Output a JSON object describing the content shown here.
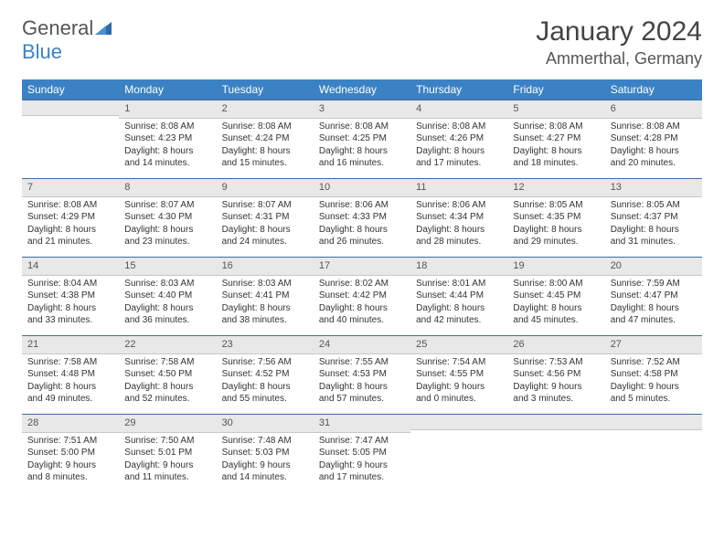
{
  "logo": {
    "text_main": "General",
    "text_accent": "Blue"
  },
  "title": "January 2024",
  "location": "Ammerthal, Germany",
  "colors": {
    "header_bg": "#3b82c4",
    "header_text": "#ffffff",
    "daynum_bg": "#e8e8e8",
    "row_border": "#3b6fa0",
    "body_text": "#333333"
  },
  "weekdays": [
    "Sunday",
    "Monday",
    "Tuesday",
    "Wednesday",
    "Thursday",
    "Friday",
    "Saturday"
  ],
  "weeks": [
    [
      {
        "num": "",
        "sunrise": "",
        "sunset": "",
        "daylight": ""
      },
      {
        "num": "1",
        "sunrise": "Sunrise: 8:08 AM",
        "sunset": "Sunset: 4:23 PM",
        "daylight": "Daylight: 8 hours and 14 minutes."
      },
      {
        "num": "2",
        "sunrise": "Sunrise: 8:08 AM",
        "sunset": "Sunset: 4:24 PM",
        "daylight": "Daylight: 8 hours and 15 minutes."
      },
      {
        "num": "3",
        "sunrise": "Sunrise: 8:08 AM",
        "sunset": "Sunset: 4:25 PM",
        "daylight": "Daylight: 8 hours and 16 minutes."
      },
      {
        "num": "4",
        "sunrise": "Sunrise: 8:08 AM",
        "sunset": "Sunset: 4:26 PM",
        "daylight": "Daylight: 8 hours and 17 minutes."
      },
      {
        "num": "5",
        "sunrise": "Sunrise: 8:08 AM",
        "sunset": "Sunset: 4:27 PM",
        "daylight": "Daylight: 8 hours and 18 minutes."
      },
      {
        "num": "6",
        "sunrise": "Sunrise: 8:08 AM",
        "sunset": "Sunset: 4:28 PM",
        "daylight": "Daylight: 8 hours and 20 minutes."
      }
    ],
    [
      {
        "num": "7",
        "sunrise": "Sunrise: 8:08 AM",
        "sunset": "Sunset: 4:29 PM",
        "daylight": "Daylight: 8 hours and 21 minutes."
      },
      {
        "num": "8",
        "sunrise": "Sunrise: 8:07 AM",
        "sunset": "Sunset: 4:30 PM",
        "daylight": "Daylight: 8 hours and 23 minutes."
      },
      {
        "num": "9",
        "sunrise": "Sunrise: 8:07 AM",
        "sunset": "Sunset: 4:31 PM",
        "daylight": "Daylight: 8 hours and 24 minutes."
      },
      {
        "num": "10",
        "sunrise": "Sunrise: 8:06 AM",
        "sunset": "Sunset: 4:33 PM",
        "daylight": "Daylight: 8 hours and 26 minutes."
      },
      {
        "num": "11",
        "sunrise": "Sunrise: 8:06 AM",
        "sunset": "Sunset: 4:34 PM",
        "daylight": "Daylight: 8 hours and 28 minutes."
      },
      {
        "num": "12",
        "sunrise": "Sunrise: 8:05 AM",
        "sunset": "Sunset: 4:35 PM",
        "daylight": "Daylight: 8 hours and 29 minutes."
      },
      {
        "num": "13",
        "sunrise": "Sunrise: 8:05 AM",
        "sunset": "Sunset: 4:37 PM",
        "daylight": "Daylight: 8 hours and 31 minutes."
      }
    ],
    [
      {
        "num": "14",
        "sunrise": "Sunrise: 8:04 AM",
        "sunset": "Sunset: 4:38 PM",
        "daylight": "Daylight: 8 hours and 33 minutes."
      },
      {
        "num": "15",
        "sunrise": "Sunrise: 8:03 AM",
        "sunset": "Sunset: 4:40 PM",
        "daylight": "Daylight: 8 hours and 36 minutes."
      },
      {
        "num": "16",
        "sunrise": "Sunrise: 8:03 AM",
        "sunset": "Sunset: 4:41 PM",
        "daylight": "Daylight: 8 hours and 38 minutes."
      },
      {
        "num": "17",
        "sunrise": "Sunrise: 8:02 AM",
        "sunset": "Sunset: 4:42 PM",
        "daylight": "Daylight: 8 hours and 40 minutes."
      },
      {
        "num": "18",
        "sunrise": "Sunrise: 8:01 AM",
        "sunset": "Sunset: 4:44 PM",
        "daylight": "Daylight: 8 hours and 42 minutes."
      },
      {
        "num": "19",
        "sunrise": "Sunrise: 8:00 AM",
        "sunset": "Sunset: 4:45 PM",
        "daylight": "Daylight: 8 hours and 45 minutes."
      },
      {
        "num": "20",
        "sunrise": "Sunrise: 7:59 AM",
        "sunset": "Sunset: 4:47 PM",
        "daylight": "Daylight: 8 hours and 47 minutes."
      }
    ],
    [
      {
        "num": "21",
        "sunrise": "Sunrise: 7:58 AM",
        "sunset": "Sunset: 4:48 PM",
        "daylight": "Daylight: 8 hours and 49 minutes."
      },
      {
        "num": "22",
        "sunrise": "Sunrise: 7:58 AM",
        "sunset": "Sunset: 4:50 PM",
        "daylight": "Daylight: 8 hours and 52 minutes."
      },
      {
        "num": "23",
        "sunrise": "Sunrise: 7:56 AM",
        "sunset": "Sunset: 4:52 PM",
        "daylight": "Daylight: 8 hours and 55 minutes."
      },
      {
        "num": "24",
        "sunrise": "Sunrise: 7:55 AM",
        "sunset": "Sunset: 4:53 PM",
        "daylight": "Daylight: 8 hours and 57 minutes."
      },
      {
        "num": "25",
        "sunrise": "Sunrise: 7:54 AM",
        "sunset": "Sunset: 4:55 PM",
        "daylight": "Daylight: 9 hours and 0 minutes."
      },
      {
        "num": "26",
        "sunrise": "Sunrise: 7:53 AM",
        "sunset": "Sunset: 4:56 PM",
        "daylight": "Daylight: 9 hours and 3 minutes."
      },
      {
        "num": "27",
        "sunrise": "Sunrise: 7:52 AM",
        "sunset": "Sunset: 4:58 PM",
        "daylight": "Daylight: 9 hours and 5 minutes."
      }
    ],
    [
      {
        "num": "28",
        "sunrise": "Sunrise: 7:51 AM",
        "sunset": "Sunset: 5:00 PM",
        "daylight": "Daylight: 9 hours and 8 minutes."
      },
      {
        "num": "29",
        "sunrise": "Sunrise: 7:50 AM",
        "sunset": "Sunset: 5:01 PM",
        "daylight": "Daylight: 9 hours and 11 minutes."
      },
      {
        "num": "30",
        "sunrise": "Sunrise: 7:48 AM",
        "sunset": "Sunset: 5:03 PM",
        "daylight": "Daylight: 9 hours and 14 minutes."
      },
      {
        "num": "31",
        "sunrise": "Sunrise: 7:47 AM",
        "sunset": "Sunset: 5:05 PM",
        "daylight": "Daylight: 9 hours and 17 minutes."
      },
      {
        "num": "",
        "sunrise": "",
        "sunset": "",
        "daylight": ""
      },
      {
        "num": "",
        "sunrise": "",
        "sunset": "",
        "daylight": ""
      },
      {
        "num": "",
        "sunrise": "",
        "sunset": "",
        "daylight": ""
      }
    ]
  ]
}
